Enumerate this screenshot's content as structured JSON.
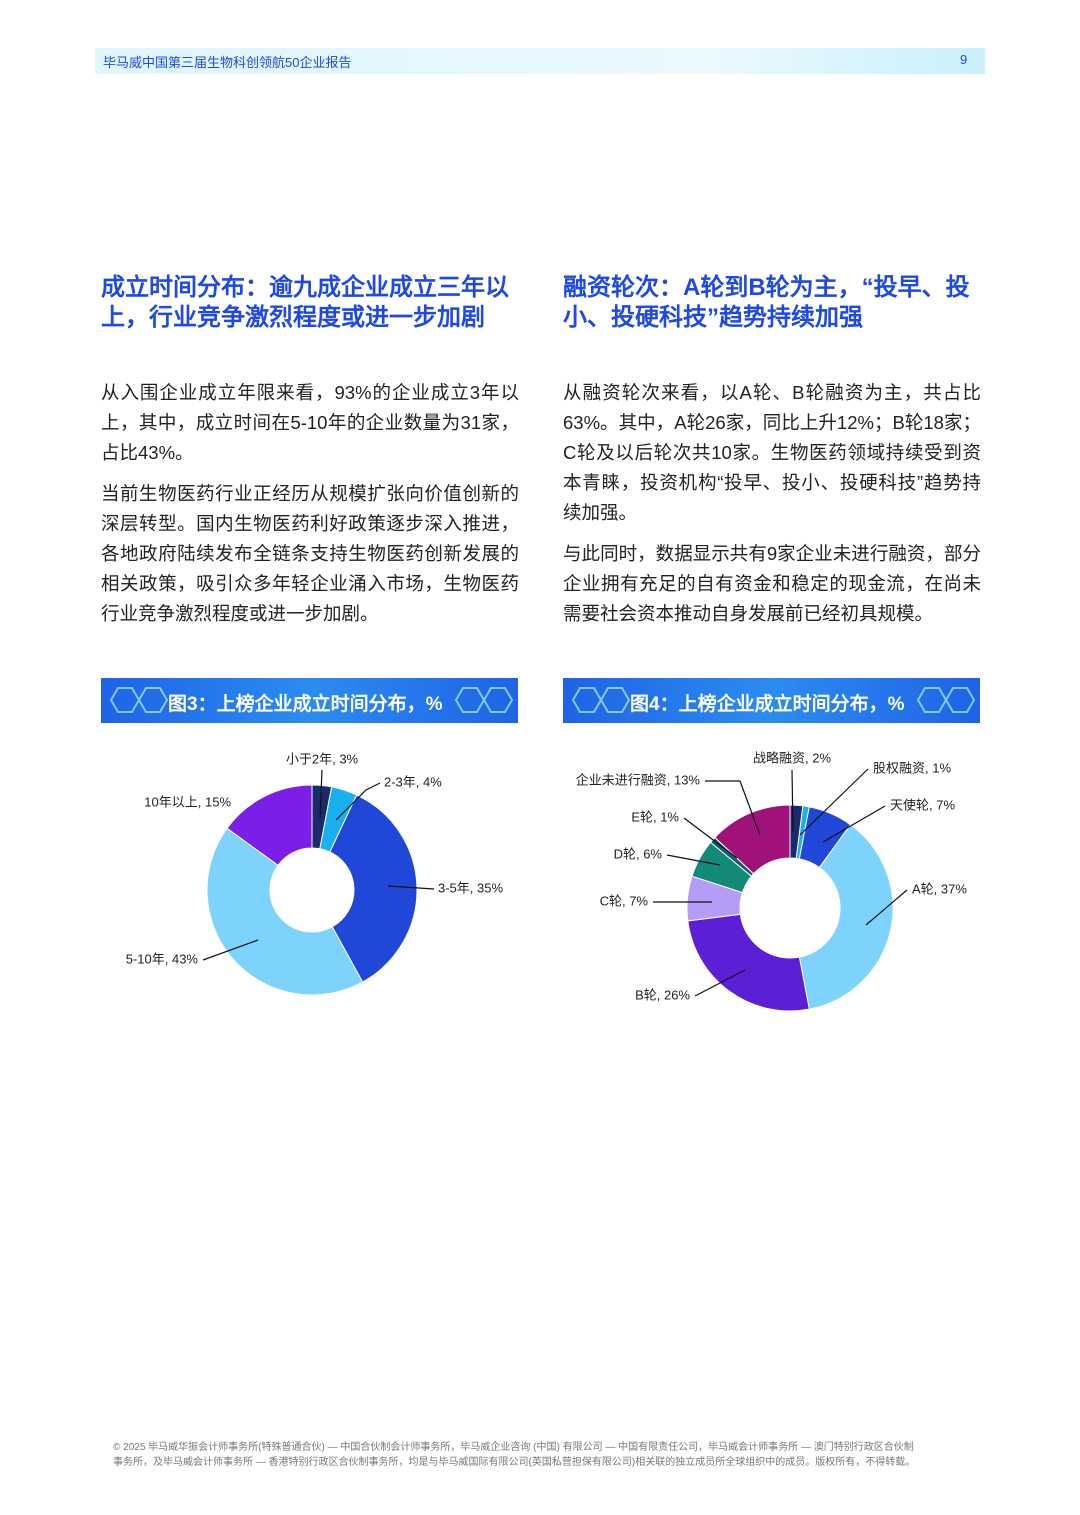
{
  "header": {
    "title": "毕马威中国第三届生物科创领航50企业报告",
    "page": "9"
  },
  "sections": [
    {
      "heading": "成立时间分布：逾九成企业成立三年以上，行业竞争激烈程度或进一步加剧",
      "paragraphs": [
        "从入围企业成立年限来看，93%的企业成立3年以上，其中，成立时间在5-10年的企业数量为31家，占比43%。",
        "当前生物医药行业正经历从规模扩张向价值创新的深层转型。国内生物医药利好政策逐步深入推进，各地政府陆续发布全链条支持生物医药创新发展的相关政策，吸引众多年轻企业涌入市场，生物医药行业竞争激烈程度或进一步加剧。"
      ]
    },
    {
      "heading": "融资轮次：A轮到B轮为主，“投早、投小、投硬科技”趋势持续加强",
      "paragraphs": [
        "从融资轮次来看，以A轮、B轮融资为主，共占比63%。其中，A轮26家，同比上升12%；B轮18家；C轮及以后轮次共10家。生物医药领域持续受到资本青睐，投资机构“投早、投小、投硬科技”趋势持续加强。",
        "与此同时，数据显示共有9家企业未进行融资，部分企业拥有充足的自有资金和稳定的现金流，在尚未需要社会资本推动自身发展前已经初具规模。"
      ]
    }
  ],
  "chart_data": [
    {
      "type": "pie",
      "donut": true,
      "title": "图3：上榜企业成立时间分布，%",
      "values": [
        3,
        4,
        35,
        43,
        15
      ],
      "value_labels": [
        "小于2年, 3%",
        "2-3年, 4%",
        "3-5年, 35%",
        "5-10年, 43%",
        "10年以上, 15%"
      ],
      "colors": [
        "#1a2a6c",
        "#1ab0f0",
        "#2147d9",
        "#7dd3fb",
        "#7a1ee8"
      ]
    },
    {
      "type": "pie",
      "donut": true,
      "title": "图4：上榜企业成立时间分布，%",
      "values": [
        2,
        1,
        7,
        37,
        26,
        7,
        6,
        1,
        13
      ],
      "value_labels": [
        "战略融资, 2%",
        "股权融资, 1%",
        "天使轮, 7%",
        "A轮, 37%",
        "B轮, 26%",
        "C轮, 7%",
        "D轮, 6%",
        "E轮, 1%",
        "企业未进行融资, 13%"
      ],
      "colors": [
        "#1a2a6c",
        "#1ab0f0",
        "#2147d9",
        "#7dd3fb",
        "#5b1fd6",
        "#b59cf7",
        "#138a78",
        "#0c5e6e",
        "#a0127a"
      ]
    }
  ],
  "footer": {
    "lines": [
      "© 2025 毕马威华振会计师事务所(特殊普通合伙) — 中国合伙制会计师事务所，毕马威企业咨询 (中国) 有限公司 — 中国有限责任公司，毕马威会计师事务所 — 澳门特别行政区合伙制",
      "事务所，及毕马威会计师事务所 — 香港特别行政区合伙制事务所，均是与毕马威国际有限公司(英国私营担保有限公司)相关联的独立成员所全球组织中的成员。版权所有，不得转载。"
    ]
  }
}
